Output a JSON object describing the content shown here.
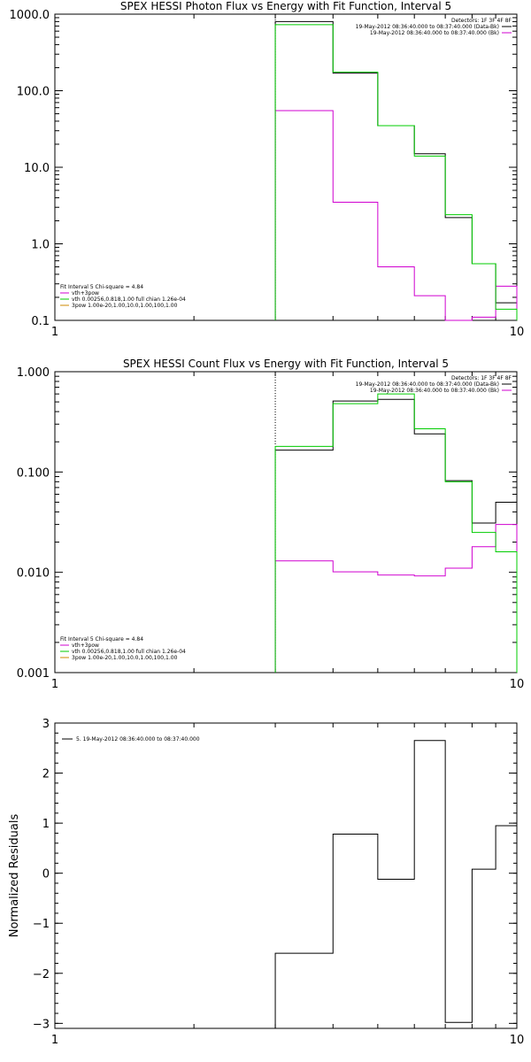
{
  "chart_data": [
    {
      "type": "line",
      "step": true,
      "title": "SPEX HESSI Photon Flux vs Energy with Fit Function, Interval 5",
      "xlabel": "",
      "ylabel": "",
      "xscale": "log",
      "yscale": "log",
      "xlim": [
        1,
        10
      ],
      "ylim": [
        0.1,
        1000
      ],
      "xtick_labels": [
        "1",
        "10"
      ],
      "ytick_labels": [
        "0.1",
        "1.0",
        "10.0",
        "100.0",
        "1000.0"
      ],
      "edges": [
        3,
        4,
        5,
        6,
        7,
        8,
        9,
        10
      ],
      "energy_limit_line": 3,
      "series": [
        {
          "name": "19-May-2012 08:36:40.000 to 08:37:40.000 (Data-Bk)",
          "color": "#000000",
          "values": [
            800,
            170,
            35,
            15,
            2.2,
            0.55,
            0.17
          ]
        },
        {
          "name": "19-May-2012 08:36:40.000 to 08:37:40.000 (Bk)",
          "color": "#d000d0",
          "values": [
            55,
            3.5,
            0.5,
            0.21,
            0.1,
            0.11,
            0.28
          ]
        },
        {
          "name": "vth+3pow",
          "color": "#00cc00",
          "values": [
            730,
            175,
            35,
            14,
            2.4,
            0.55,
            0.14
          ]
        }
      ],
      "legend_top_right": {
        "header": "Detectors: 1F 3F 4F 8F",
        "entries": [
          {
            "text": "19-May-2012 08:36:40.000 to 08:37:40.000 (Data-Bk)",
            "color": "#000000"
          },
          {
            "text": "19-May-2012 08:36:40.000 to 08:37:40.000 (Bk)",
            "color": "#d000d0"
          }
        ]
      },
      "legend_bottom_left": {
        "header": "Fit Interval 5   Chi-square = 4.84",
        "entries": [
          {
            "text": "vth+3pow",
            "color": "#d000d0"
          },
          {
            "text": "vth 0.00256,0.818,1.00   full chian 1.26e-04",
            "color": "#00cc00"
          },
          {
            "text": "3pow 1.00e-20,1.00,10.0,1.00,100,1.00",
            "color": "#cc8800"
          }
        ]
      }
    },
    {
      "type": "line",
      "step": true,
      "title": "SPEX HESSI Count Flux vs Energy with Fit Function, Interval 5",
      "xlabel": "",
      "ylabel": "",
      "xscale": "log",
      "yscale": "log",
      "xlim": [
        1,
        10
      ],
      "ylim": [
        0.001,
        1
      ],
      "xtick_labels": [
        "1",
        "10"
      ],
      "ytick_labels": [
        "0.001",
        "0.010",
        "0.100",
        "1.000"
      ],
      "edges": [
        3,
        4,
        5,
        6,
        7,
        8,
        9,
        10
      ],
      "energy_limit_line": 3,
      "series": [
        {
          "name": "19-May-2012 08:36:40.000 to 08:37:40.000 (Data-Bk)",
          "color": "#000000",
          "values": [
            0.165,
            0.51,
            0.53,
            0.24,
            0.082,
            0.031,
            0.05
          ]
        },
        {
          "name": "19-May-2012 08:36:40.000 to 08:37:40.000 (Bk)",
          "color": "#d000d0",
          "values": [
            0.013,
            0.0101,
            0.0094,
            0.0092,
            0.011,
            0.018,
            0.03
          ]
        },
        {
          "name": "vth+3pow",
          "color": "#00cc00",
          "values": [
            0.18,
            0.48,
            0.6,
            0.27,
            0.08,
            0.025,
            0.016
          ]
        }
      ],
      "legend_top_right": {
        "header": "Detectors: 1F 3F 4F 8F",
        "entries": [
          {
            "text": "19-May-2012 08:36:40.000 to 08:37:40.000 (Data-Bk)",
            "color": "#000000"
          },
          {
            "text": "19-May-2012 08:36:40.000 to 08:37:40.000 (Bk)",
            "color": "#d000d0"
          }
        ]
      },
      "legend_bottom_left": {
        "header": "Fit Interval 5   Chi-square = 4.84",
        "entries": [
          {
            "text": "vth+3pow",
            "color": "#d000d0"
          },
          {
            "text": "vth 0.00256,0.818,1.00   full chian 1.26e-04",
            "color": "#00cc00"
          },
          {
            "text": "3pow 1.00e-20,1.00,10.0,1.00,100,1.00",
            "color": "#cc8800"
          }
        ]
      }
    },
    {
      "type": "line",
      "step": true,
      "title": "",
      "xlabel": "",
      "ylabel": "Normalized Residuals",
      "xscale": "log",
      "yscale": "linear",
      "xlim": [
        1,
        10
      ],
      "ylim": [
        -3.1,
        3
      ],
      "xtick_labels": [
        "1",
        "10"
      ],
      "yticks": [
        -3,
        -2,
        -1,
        0,
        1,
        2,
        3
      ],
      "edges": [
        3,
        4,
        5,
        6,
        7,
        8,
        9,
        10
      ],
      "series": [
        {
          "name": "5. 19-May-2012 08:36:40.000 to 08:37:40.000",
          "color": "#000000",
          "values": [
            -1.6,
            0.78,
            -0.12,
            2.65,
            -2.98,
            0.08,
            0.95
          ]
        }
      ],
      "legend": {
        "entries": [
          {
            "text": "5. 19-May-2012 08:36:40.000 to 08:37:40.000",
            "color": "#000000"
          }
        ]
      }
    }
  ]
}
